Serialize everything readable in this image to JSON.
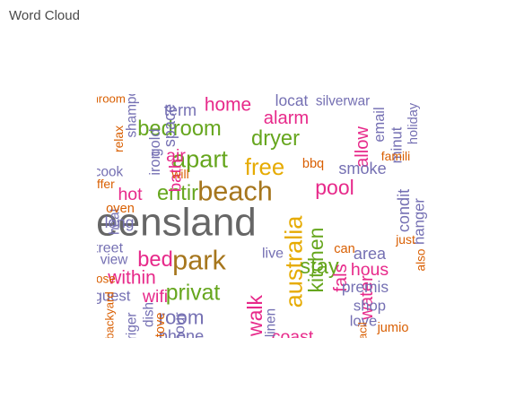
{
  "title": "Word Cloud",
  "chart_data": {
    "type": "wordcloud",
    "title": "",
    "words": [
      {
        "text": "queensland",
        "weight": 100,
        "color": "#666666",
        "rotate": 0
      },
      {
        "text": "beach",
        "weight": 62,
        "color": "#A6761D",
        "rotate": 0
      },
      {
        "text": "park",
        "weight": 62,
        "color": "#A6761D",
        "rotate": 0
      },
      {
        "text": "australia",
        "weight": 52,
        "color": "#E6AB02",
        "rotate": 90
      },
      {
        "text": "apart",
        "weight": 52,
        "color": "#66A61E",
        "rotate": 0
      },
      {
        "text": "free",
        "weight": 48,
        "color": "#E6AB02",
        "rotate": 0
      },
      {
        "text": "privat",
        "weight": 45,
        "color": "#66A61E",
        "rotate": 0
      },
      {
        "text": "entir",
        "weight": 42,
        "color": "#66A61E",
        "rotate": 0
      },
      {
        "text": "bedroom",
        "weight": 42,
        "color": "#66A61E",
        "rotate": 0
      },
      {
        "text": "dryer",
        "weight": 42,
        "color": "#66A61E",
        "rotate": 0
      },
      {
        "text": "stay",
        "weight": 42,
        "color": "#66A61E",
        "rotate": 0
      },
      {
        "text": "bed",
        "weight": 42,
        "color": "#E7298A",
        "rotate": 0
      },
      {
        "text": "pool",
        "weight": 40,
        "color": "#E7298A",
        "rotate": 0
      },
      {
        "text": "kitchen",
        "weight": 40,
        "color": "#66A61E",
        "rotate": 90
      },
      {
        "text": "walk",
        "weight": 40,
        "color": "#E7298A",
        "rotate": 90
      },
      {
        "text": "room",
        "weight": 38,
        "color": "#7570B3",
        "rotate": 0
      },
      {
        "text": "within",
        "weight": 34,
        "color": "#E7298A",
        "rotate": 0
      },
      {
        "text": "home",
        "weight": 34,
        "color": "#E7298A",
        "rotate": 0
      },
      {
        "text": "alarm",
        "weight": 32,
        "color": "#E7298A",
        "rotate": 0
      },
      {
        "text": "allow",
        "weight": 32,
        "color": "#E7298A",
        "rotate": 90
      },
      {
        "text": "fals",
        "weight": 32,
        "color": "#E7298A",
        "rotate": 90
      },
      {
        "text": "water",
        "weight": 32,
        "color": "#E7298A",
        "rotate": 90
      },
      {
        "text": "hous",
        "weight": 30,
        "color": "#E7298A",
        "rotate": 0
      },
      {
        "text": "coast",
        "weight": 30,
        "color": "#E7298A",
        "rotate": 0
      },
      {
        "text": "wifi",
        "weight": 30,
        "color": "#E7298A",
        "rotate": 0
      },
      {
        "text": "hot",
        "weight": 30,
        "color": "#E7298A",
        "rotate": 0
      },
      {
        "text": "air",
        "weight": 30,
        "color": "#E7298A",
        "rotate": 0
      },
      {
        "text": "bath",
        "weight": 28,
        "color": "#E7298A",
        "rotate": 90
      },
      {
        "text": "area",
        "weight": 26,
        "color": "#7570B3",
        "rotate": 0
      },
      {
        "text": "smoke",
        "weight": 26,
        "color": "#7570B3",
        "rotate": 0
      },
      {
        "text": "condit",
        "weight": 26,
        "color": "#7570B3",
        "rotate": 90
      },
      {
        "text": "phone",
        "weight": 26,
        "color": "#7570B3",
        "rotate": 0
      },
      {
        "text": "term",
        "weight": 26,
        "color": "#7570B3",
        "rotate": 0
      },
      {
        "text": "space",
        "weight": 26,
        "color": "#7570B3",
        "rotate": 90
      },
      {
        "text": "premis",
        "weight": 24,
        "color": "#7570B3",
        "rotate": 0
      },
      {
        "text": "locat",
        "weight": 24,
        "color": "#7570B3",
        "rotate": 0
      },
      {
        "text": "long",
        "weight": 24,
        "color": "#7570B3",
        "rotate": 0
      },
      {
        "text": "hanger",
        "weight": 22,
        "color": "#7570B3",
        "rotate": 90
      },
      {
        "text": "minut",
        "weight": 22,
        "color": "#7570B3",
        "rotate": 90
      },
      {
        "text": "love",
        "weight": 22,
        "color": "#7570B3",
        "rotate": 0
      },
      {
        "text": "shop",
        "weight": 22,
        "color": "#7570B3",
        "rotate": 0
      },
      {
        "text": "guest",
        "weight": 22,
        "color": "#7570B3",
        "rotate": 0
      },
      {
        "text": "hour",
        "weight": 22,
        "color": "#7570B3",
        "rotate": 90
      },
      {
        "text": "email",
        "weight": 21,
        "color": "#7570B3",
        "rotate": 90
      },
      {
        "text": "iron",
        "weight": 21,
        "color": "#7570B3",
        "rotate": 90
      },
      {
        "text": "gold",
        "weight": 21,
        "color": "#7570B3",
        "rotate": 90
      },
      {
        "text": "street",
        "weight": 20,
        "color": "#7570B3",
        "rotate": 0
      },
      {
        "text": "live",
        "weight": 20,
        "color": "#7570B3",
        "rotate": 0
      },
      {
        "text": "linen",
        "weight": 18,
        "color": "#7570B3",
        "rotate": 90
      },
      {
        "text": "dish",
        "weight": 18,
        "color": "#7570B3",
        "rotate": 90
      },
      {
        "text": "view",
        "weight": 18,
        "color": "#7570B3",
        "rotate": 0
      },
      {
        "text": "cook",
        "weight": 18,
        "color": "#7570B3",
        "rotate": 0
      },
      {
        "text": "silverwar",
        "weight": 18,
        "color": "#7570B3",
        "rotate": 0
      },
      {
        "text": "shampoo",
        "weight": 18,
        "color": "#7570B3",
        "rotate": 90
      },
      {
        "text": "heat",
        "weight": 18,
        "color": "#7570B3",
        "rotate": 90
      },
      {
        "text": "friger",
        "weight": 18,
        "color": "#7570B3",
        "rotate": 90
      },
      {
        "text": "holiday",
        "weight": 16,
        "color": "#7570B3",
        "rotate": 90
      },
      {
        "text": "bbq",
        "weight": 16,
        "color": "#D95F02",
        "rotate": 0
      },
      {
        "text": "can",
        "weight": 16,
        "color": "#D95F02",
        "rotate": 0
      },
      {
        "text": "jumio",
        "weight": 16,
        "color": "#D95F02",
        "rotate": 0
      },
      {
        "text": "oven",
        "weight": 16,
        "color": "#D95F02",
        "rotate": 0
      },
      {
        "text": "stove",
        "weight": 16,
        "color": "#D95F02",
        "rotate": 90
      },
      {
        "text": "famili",
        "weight": 14,
        "color": "#D95F02",
        "rotate": 0
      },
      {
        "text": "just",
        "weight": 14,
        "color": "#D95F02",
        "rotate": 0
      },
      {
        "text": "will",
        "weight": 14,
        "color": "#D95F02",
        "rotate": 0
      },
      {
        "text": "offer",
        "weight": 14,
        "color": "#D95F02",
        "rotate": 0
      },
      {
        "text": "relax",
        "weight": 14,
        "color": "#D95F02",
        "rotate": 90
      },
      {
        "text": "also",
        "weight": 13,
        "color": "#D95F02",
        "rotate": 90
      },
      {
        "text": "close",
        "weight": 13,
        "color": "#D95F02",
        "rotate": 0
      },
      {
        "text": "backyard",
        "weight": 12,
        "color": "#D95F02",
        "rotate": 90
      },
      {
        "text": "facil",
        "weight": 12,
        "color": "#D95F02",
        "rotate": 90
      },
      {
        "text": "bathroom",
        "weight": 12,
        "color": "#D95F02",
        "rotate": 0
      }
    ]
  }
}
